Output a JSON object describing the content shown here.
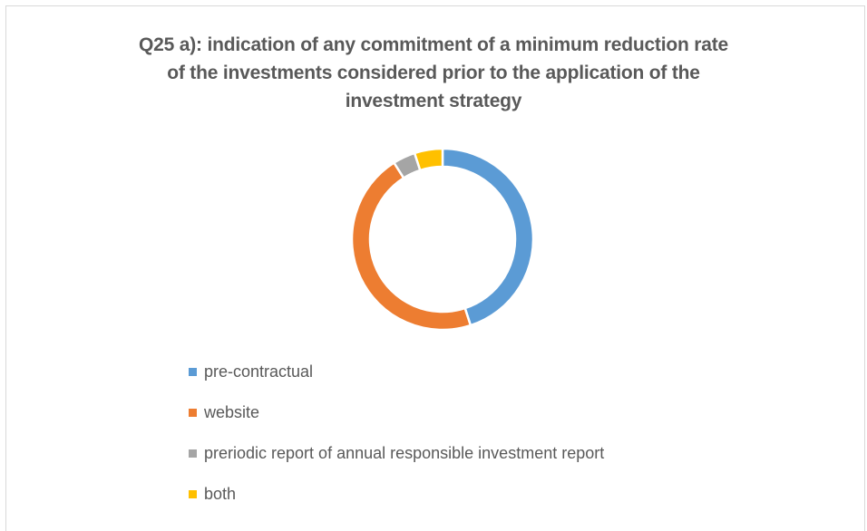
{
  "chart_data": {
    "type": "pie",
    "subtype": "doughnut",
    "title_lines": [
      "Q25 a): indication of any commitment of a minimum reduction rate",
      "of the investments considered prior to the application of the",
      "investment strategy"
    ],
    "categories": [
      "pre-contractual",
      "website",
      "preriodic report of annual responsible investment report",
      "both"
    ],
    "values": [
      45,
      46,
      4,
      5
    ],
    "colors": [
      "#5b9bd5",
      "#ed7d31",
      "#a5a5a5",
      "#ffc000"
    ],
    "legend_position": "bottom-left"
  }
}
